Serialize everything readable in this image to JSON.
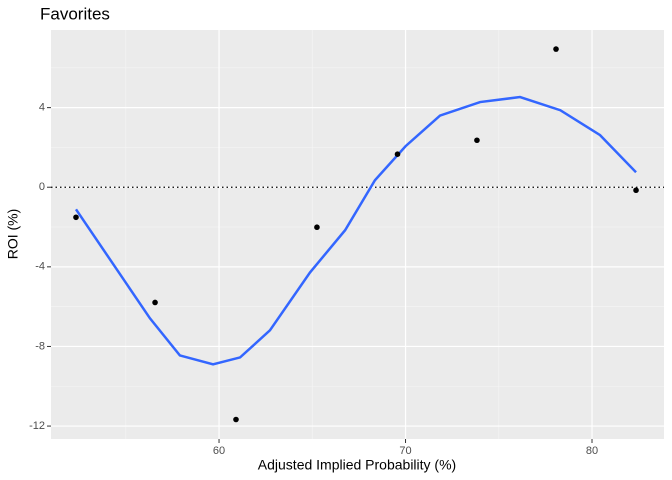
{
  "chart_data": {
    "type": "scatter",
    "title": "Favorites",
    "x_label": "Adjusted Implied Probability (%)",
    "y_label": "ROI (%)",
    "xlim": [
      50.99,
      83.86
    ],
    "ylim": [
      -12.65,
      7.9
    ],
    "xticks": [
      60,
      70,
      80
    ],
    "yticks": [
      4,
      0,
      -4,
      -8,
      -12
    ],
    "x_minor_ticks": [
      55,
      65,
      75
    ],
    "y_minor_ticks": [
      6,
      2,
      -2,
      -6,
      -10
    ],
    "grid": true,
    "hline": 0,
    "points": {
      "color": "#000000",
      "x": [
        52.33,
        56.57,
        60.91,
        65.25,
        69.57,
        73.83,
        78.07,
        82.36
      ],
      "y": [
        -1.51,
        -5.79,
        -11.67,
        -2.01,
        1.66,
        2.36,
        6.94,
        -0.15
      ]
    },
    "smooth": {
      "color": "#3366FF",
      "x": [
        52.33,
        56.3,
        57.9,
        59.68,
        61.13,
        62.73,
        64.88,
        66.76,
        68.36,
        70.0,
        71.85,
        74.0,
        76.14,
        78.3,
        80.43,
        82.36
      ],
      "y": [
        -1.11,
        -6.59,
        -8.45,
        -8.9,
        -8.55,
        -7.19,
        -4.28,
        -2.16,
        0.35,
        2.06,
        3.6,
        4.28,
        4.53,
        3.87,
        2.62,
        0.75
      ]
    }
  }
}
